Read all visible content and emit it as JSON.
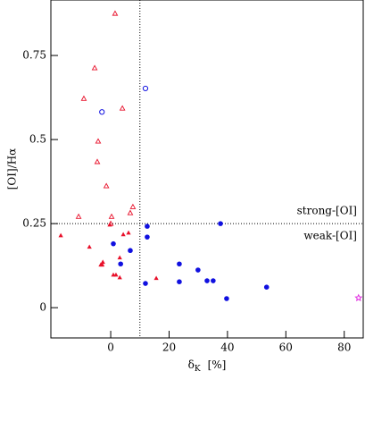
{
  "chart_data": {
    "type": "scatter",
    "xlabel_symbol": "δ",
    "xlabel_subscript": "K",
    "xlabel_unit": "[%]",
    "ylabel": "[OI]/Hα",
    "xlim": [
      -20.5,
      86.5
    ],
    "ylim": [
      -0.09,
      0.915
    ],
    "xticks": [
      0,
      20,
      40,
      60,
      80
    ],
    "yticks": [
      0,
      0.25,
      0.5,
      0.75
    ],
    "vlines": [
      10
    ],
    "hlines": [
      0.25
    ],
    "annotations": [
      "strong-[OI]",
      "weak-[OI]"
    ],
    "series": [
      {
        "marker": "open-triangle",
        "color": "#e8102a",
        "x": [
          1.5,
          -5.5,
          -9.2,
          4,
          -4.3,
          -4.6,
          -1.5,
          7.6,
          6.7,
          -11,
          0.3,
          0
        ],
        "values": [
          0.875,
          0.713,
          0.622,
          0.593,
          0.495,
          0.434,
          0.362,
          0.3,
          0.282,
          0.271,
          0.271,
          0.25
        ]
      },
      {
        "marker": "filled-triangle",
        "color": "#e8102a",
        "x": [
          -17.1,
          -7.3,
          6.1,
          4.3,
          -0.3,
          -2.7,
          -3.4,
          -2.9,
          3.1,
          0.9,
          1.8,
          3.1,
          15.6
        ],
        "values": [
          0.215,
          0.181,
          0.223,
          0.218,
          0.247,
          0.136,
          0.128,
          0.128,
          0.149,
          0.098,
          0.098,
          0.09,
          0.088
        ]
      },
      {
        "marker": "filled-circle",
        "color": "#1010e0",
        "x": [
          0.9,
          12.5,
          12.5,
          6.7,
          3.4,
          11.9,
          23.5,
          23.5,
          29.9,
          33,
          35.1,
          37.6,
          39.7,
          53.4
        ],
        "values": [
          0.19,
          0.242,
          0.21,
          0.17,
          0.13,
          0.072,
          0.13,
          0.077,
          0.112,
          0.08,
          0.08,
          0.25,
          0.027,
          0.061
        ]
      },
      {
        "marker": "open-circle",
        "color": "#1010e0",
        "x": [
          -3,
          11.9
        ],
        "values": [
          0.582,
          0.652
        ]
      },
      {
        "marker": "star",
        "color": "#e020e0",
        "x": [
          84.9
        ],
        "values": [
          0.029
        ]
      }
    ]
  }
}
